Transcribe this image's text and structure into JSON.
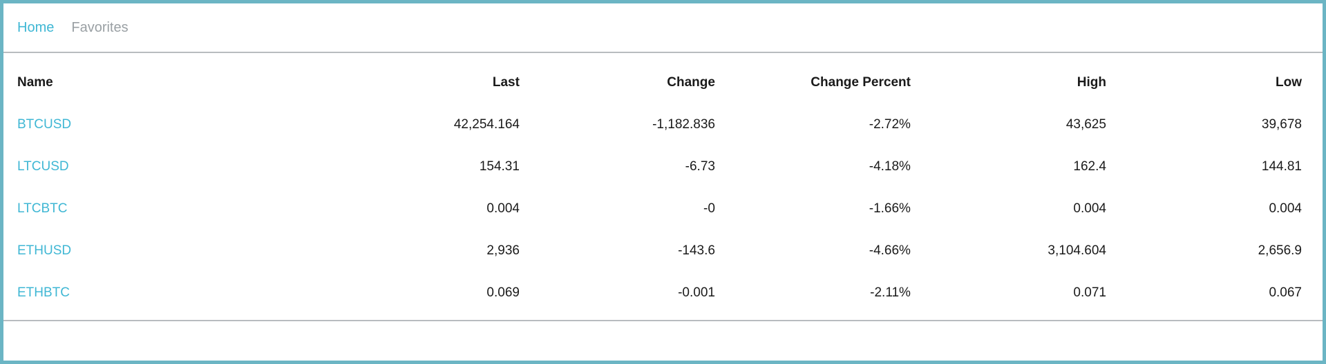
{
  "nav": {
    "items": [
      {
        "label": "Home",
        "active": true
      },
      {
        "label": "Favorites",
        "active": false
      }
    ]
  },
  "table": {
    "headers": [
      "Name",
      "Last",
      "Change",
      "Change Percent",
      "High",
      "Low"
    ],
    "rows": [
      [
        "BTCUSD",
        "42,254.164",
        "-1,182.836",
        "-2.72%",
        "43,625",
        "39,678"
      ],
      [
        "LTCUSD",
        "154.31",
        "-6.73",
        "-4.18%",
        "162.4",
        "144.81"
      ],
      [
        "LTCBTC",
        "0.004",
        "-0",
        "-1.66%",
        "0.004",
        "0.004"
      ],
      [
        "ETHUSD",
        "2,936",
        "-143.6",
        "-4.66%",
        "3,104.604",
        "2,656.9"
      ],
      [
        "ETHBTC",
        "0.069",
        "-0.001",
        "-2.11%",
        "0.071",
        "0.067"
      ]
    ]
  },
  "colors": {
    "accent": "#3fb7d4",
    "frame_border": "#6bb5c4",
    "inactive_link": "#9aa0a4",
    "divider": "#b8bcbf"
  }
}
